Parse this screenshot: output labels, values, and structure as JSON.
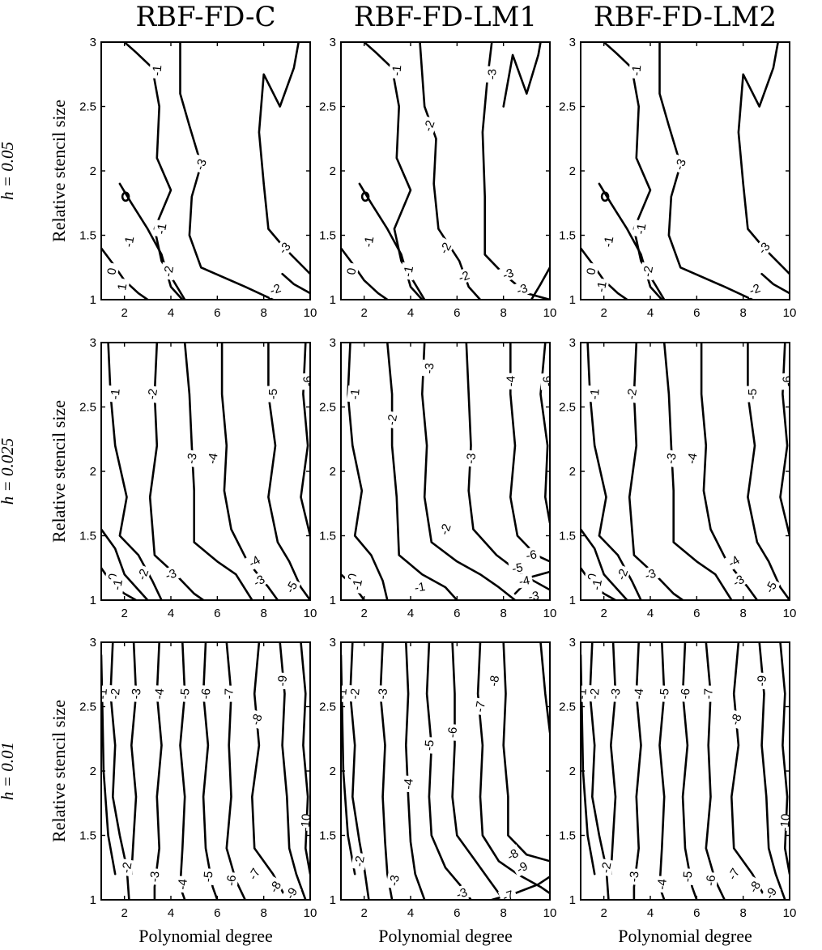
{
  "chart_data": {
    "type": "contour",
    "columns": [
      "RBF-FD-C",
      "RBF-FD-LM1",
      "RBF-FD-LM2"
    ],
    "rows": [
      "h = 0.05",
      "h = 0.025",
      "h = 0.01"
    ],
    "xlabel": "Polynomial degree",
    "ylabel": "Relative stencil size",
    "xlim": [
      1,
      10
    ],
    "ylim": [
      1,
      3
    ],
    "xticks": [
      "2",
      "4",
      "6",
      "8",
      "10"
    ],
    "yticks": [
      "1",
      "1.5",
      "2",
      "2.5",
      "3"
    ],
    "panels": [
      {
        "row": 0,
        "col": 0,
        "levels": [
          0,
          1,
          -1,
          -1,
          -2,
          -3,
          -2,
          -3,
          -1
        ]
      },
      {
        "row": 0,
        "col": 1,
        "levels": [
          0,
          -1,
          -1,
          -1,
          -2,
          -3,
          -2,
          -3,
          -2,
          -3
        ]
      },
      {
        "row": 0,
        "col": 2,
        "levels": [
          0,
          -1,
          -1,
          -1,
          -2,
          -3,
          -2,
          -3,
          -1
        ]
      },
      {
        "row": 1,
        "col": 0,
        "levels": [
          0,
          -1,
          -1,
          -2,
          -2,
          -3,
          -3,
          -4,
          -3,
          -4,
          -5,
          -5,
          -6
        ]
      },
      {
        "row": 1,
        "col": 1,
        "levels": [
          0,
          -1,
          -1,
          -1,
          -2,
          -2,
          -3,
          -3,
          -4,
          -5,
          -6,
          -6,
          -3,
          -4
        ]
      },
      {
        "row": 1,
        "col": 2,
        "levels": [
          0,
          -1,
          -1,
          -2,
          -2,
          -3,
          -3,
          -4,
          -3,
          -4,
          -5,
          -5,
          -6
        ]
      },
      {
        "row": 2,
        "col": 0,
        "levels": [
          -1,
          -2,
          -2,
          -3,
          -3,
          -4,
          -4,
          -5,
          -5,
          -6,
          -6,
          -7,
          -7,
          -8,
          -8,
          -9,
          -9,
          -10
        ]
      },
      {
        "row": 2,
        "col": 1,
        "levels": [
          -1,
          -2,
          -2,
          -3,
          -3,
          -4,
          -5,
          -6,
          -7,
          -8,
          -8,
          -9,
          -3,
          -7
        ]
      },
      {
        "row": 2,
        "col": 2,
        "levels": [
          -1,
          -2,
          -2,
          -3,
          -3,
          -4,
          -4,
          -5,
          -5,
          -6,
          -6,
          -7,
          -7,
          -8,
          -8,
          -9,
          -9,
          -10
        ]
      }
    ]
  }
}
